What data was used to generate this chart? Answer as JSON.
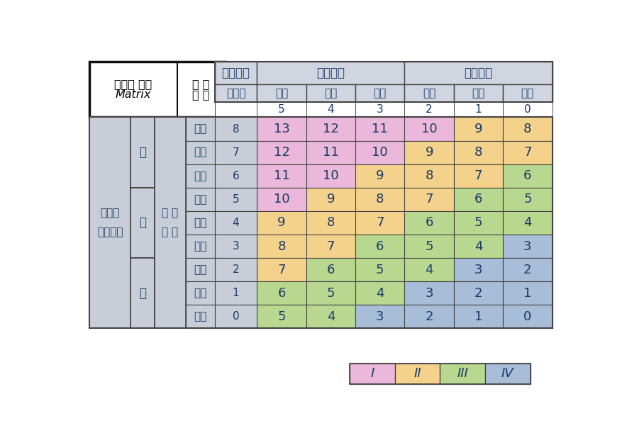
{
  "title_left_lines": [
    "서식처 평가",
    "Matrix"
  ],
  "title_right_lines": [
    "하 천",
    "습 지"
  ],
  "header1": [
    "하천형태",
    "자연하천",
    "개수하천"
  ],
  "header2_sub": [
    "자연성",
    "높음",
    "보통",
    "낮음",
    "높음",
    "보통",
    "낮음"
  ],
  "header3_scores": [
    "5",
    "4",
    "3",
    "2",
    "1",
    "0"
  ],
  "level1_label": "범람원\n수변계수",
  "level2_labels": [
    "고",
    "중",
    "저"
  ],
  "level3_labels": [
    "없음",
    "소극",
    "적극",
    "없음",
    "소극",
    "적극",
    "없음",
    "소극",
    "적극"
  ],
  "watergov_label": "수 문\n통 제",
  "num_labels": [
    "8",
    "7",
    "6",
    "5",
    "4",
    "3",
    "2",
    "1",
    "0"
  ],
  "data_values": [
    [
      13,
      12,
      11,
      10,
      9,
      8
    ],
    [
      12,
      11,
      10,
      9,
      8,
      7
    ],
    [
      11,
      10,
      9,
      8,
      7,
      6
    ],
    [
      10,
      9,
      8,
      7,
      6,
      5
    ],
    [
      9,
      8,
      7,
      6,
      5,
      4
    ],
    [
      8,
      7,
      6,
      5,
      4,
      3
    ],
    [
      7,
      6,
      5,
      4,
      3,
      2
    ],
    [
      6,
      5,
      4,
      3,
      2,
      1
    ],
    [
      5,
      4,
      3,
      2,
      1,
      0
    ]
  ],
  "cell_colors": [
    [
      "#EBB8DC",
      "#EBB8DC",
      "#EBB8DC",
      "#EBB8DC",
      "#F5D28C",
      "#F5D28C"
    ],
    [
      "#EBB8DC",
      "#EBB8DC",
      "#EBB8DC",
      "#F5D28C",
      "#F5D28C",
      "#F5D28C"
    ],
    [
      "#EBB8DC",
      "#EBB8DC",
      "#F5D28C",
      "#F5D28C",
      "#F5D28C",
      "#B8D890"
    ],
    [
      "#EBB8DC",
      "#F5D28C",
      "#F5D28C",
      "#F5D28C",
      "#B8D890",
      "#B8D890"
    ],
    [
      "#F5D28C",
      "#F5D28C",
      "#F5D28C",
      "#B8D890",
      "#B8D890",
      "#B8D890"
    ],
    [
      "#F5D28C",
      "#F5D28C",
      "#B8D890",
      "#B8D890",
      "#B8D890",
      "#A8BDD8"
    ],
    [
      "#F5D28C",
      "#B8D890",
      "#B8D890",
      "#B8D890",
      "#A8BDD8",
      "#A8BDD8"
    ],
    [
      "#B8D890",
      "#B8D890",
      "#B8D890",
      "#A8BDD8",
      "#A8BDD8",
      "#A8BDD8"
    ],
    [
      "#B8D890",
      "#B8D890",
      "#A8BDD8",
      "#A8BDD8",
      "#A8BDD8",
      "#A8BDD8"
    ]
  ],
  "legend_labels": [
    "I",
    "II",
    "III",
    "IV"
  ],
  "legend_colors": [
    "#EBB8DC",
    "#F5D28C",
    "#B8D890",
    "#A8BDD8"
  ],
  "header_bg": "#D0D5E0",
  "label_bg": "#C8CDD8",
  "text_color": "#1A3A6A",
  "border_color": "#444444",
  "title_border_color": "#111111"
}
